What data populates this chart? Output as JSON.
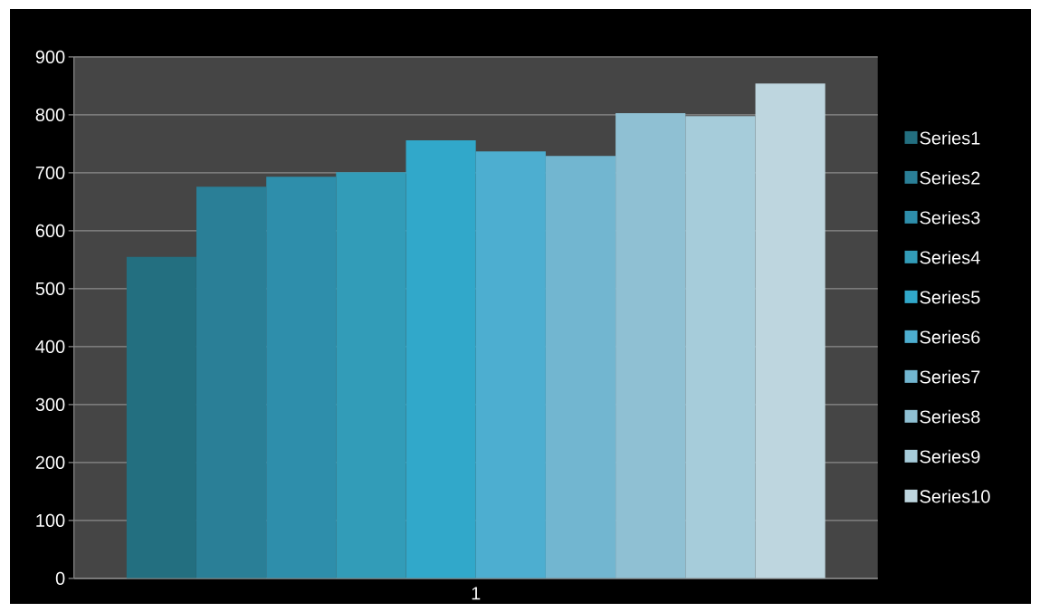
{
  "chart_data": {
    "type": "bar",
    "categories": [
      "1"
    ],
    "series": [
      {
        "name": "Series1",
        "color": "#236f80",
        "values": [
          555
        ]
      },
      {
        "name": "Series2",
        "color": "#2a7f97",
        "values": [
          676
        ]
      },
      {
        "name": "Series3",
        "color": "#2e8eab",
        "values": [
          693
        ]
      },
      {
        "name": "Series4",
        "color": "#329cb8",
        "values": [
          701
        ]
      },
      {
        "name": "Series5",
        "color": "#31a8ca",
        "values": [
          756
        ]
      },
      {
        "name": "Series6",
        "color": "#4daed0",
        "values": [
          737
        ]
      },
      {
        "name": "Series7",
        "color": "#72b6d0",
        "values": [
          729
        ]
      },
      {
        "name": "Series8",
        "color": "#8fc0d3",
        "values": [
          803
        ]
      },
      {
        "name": "Series9",
        "color": "#a6ccda",
        "values": [
          798
        ]
      },
      {
        "name": "Series10",
        "color": "#bed6df",
        "values": [
          854
        ]
      }
    ],
    "ylim": [
      0,
      900
    ],
    "yticks": [
      0,
      100,
      200,
      300,
      400,
      500,
      600,
      700,
      800,
      900
    ],
    "grid": "y",
    "legend": "right"
  }
}
